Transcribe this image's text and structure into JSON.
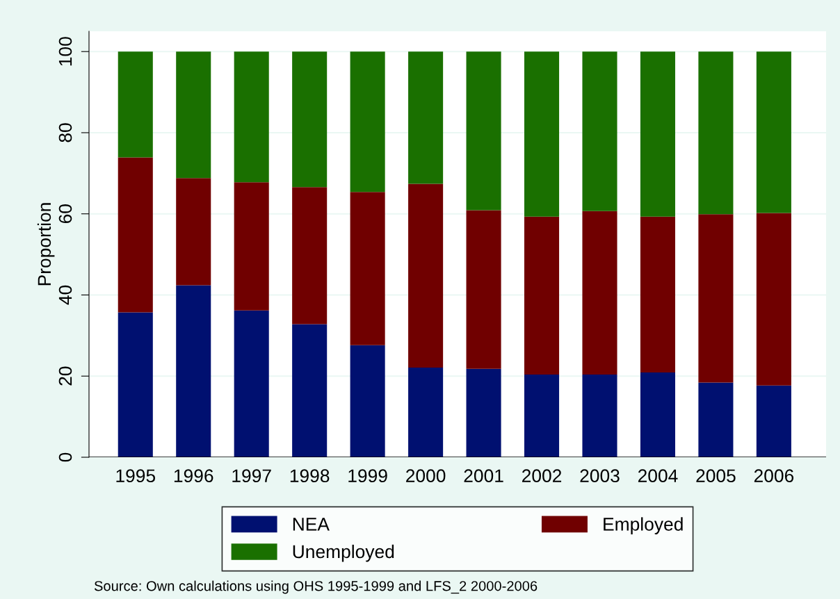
{
  "chart_data": {
    "type": "bar",
    "stacked": true,
    "ylabel": "Proportion",
    "categories": [
      "1995",
      "1996",
      "1997",
      "1998",
      "1999",
      "2000",
      "2001",
      "2002",
      "2003",
      "2004",
      "2005",
      "2006"
    ],
    "series": [
      {
        "name": "NEA",
        "color": "#001070",
        "values": [
          35.7,
          42.4,
          36.2,
          32.8,
          27.6,
          22.1,
          21.8,
          20.4,
          20.4,
          20.9,
          18.4,
          17.7
        ]
      },
      {
        "name": "Employed",
        "color": "#700000",
        "values": [
          38.2,
          26.4,
          31.6,
          33.8,
          37.8,
          45.3,
          39.1,
          38.9,
          40.3,
          38.4,
          41.5,
          42.5
        ]
      },
      {
        "name": "Unemployed",
        "color": "#1a7000",
        "values": [
          26.1,
          31.2,
          32.2,
          33.4,
          34.6,
          32.6,
          39.1,
          40.7,
          39.3,
          40.7,
          40.1,
          39.8
        ]
      }
    ],
    "ylim": [
      0,
      105
    ],
    "yticks": [
      0,
      20,
      40,
      60,
      80,
      100
    ],
    "grid": "y",
    "legend": "bottom",
    "annotations": [
      "Source: Own calculations using OHS 1995-1999 and LFS_2 2000-2006"
    ]
  }
}
